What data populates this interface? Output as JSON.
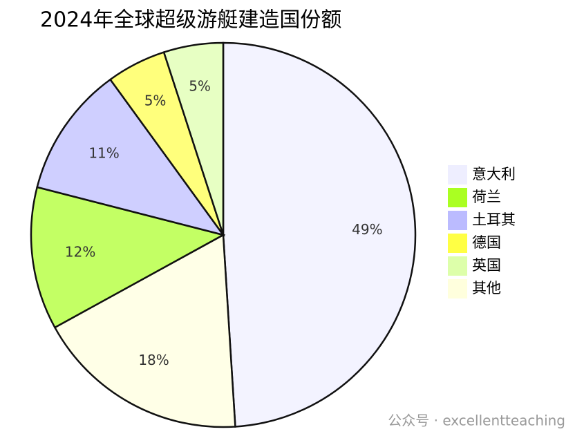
{
  "chart_data": {
    "type": "pie",
    "title": "2024年全球超级游艇建造国份额",
    "categories": [
      "意大利",
      "荷兰",
      "土耳其",
      "德国",
      "英国",
      "其他"
    ],
    "values": [
      49,
      12,
      11,
      5,
      5,
      18
    ],
    "value_labels": [
      "49%",
      "12%",
      "11%",
      "5%",
      "5%",
      "18%"
    ],
    "colors": [
      "#eeeeff",
      "#aaff22",
      "#bbbbff",
      "#ffff44",
      "#ddffaa",
      "#ffffdd"
    ],
    "sort_slices": "descending",
    "direction": "clockwise",
    "legend": "right"
  },
  "watermark": "公众号 · excellentteaching"
}
